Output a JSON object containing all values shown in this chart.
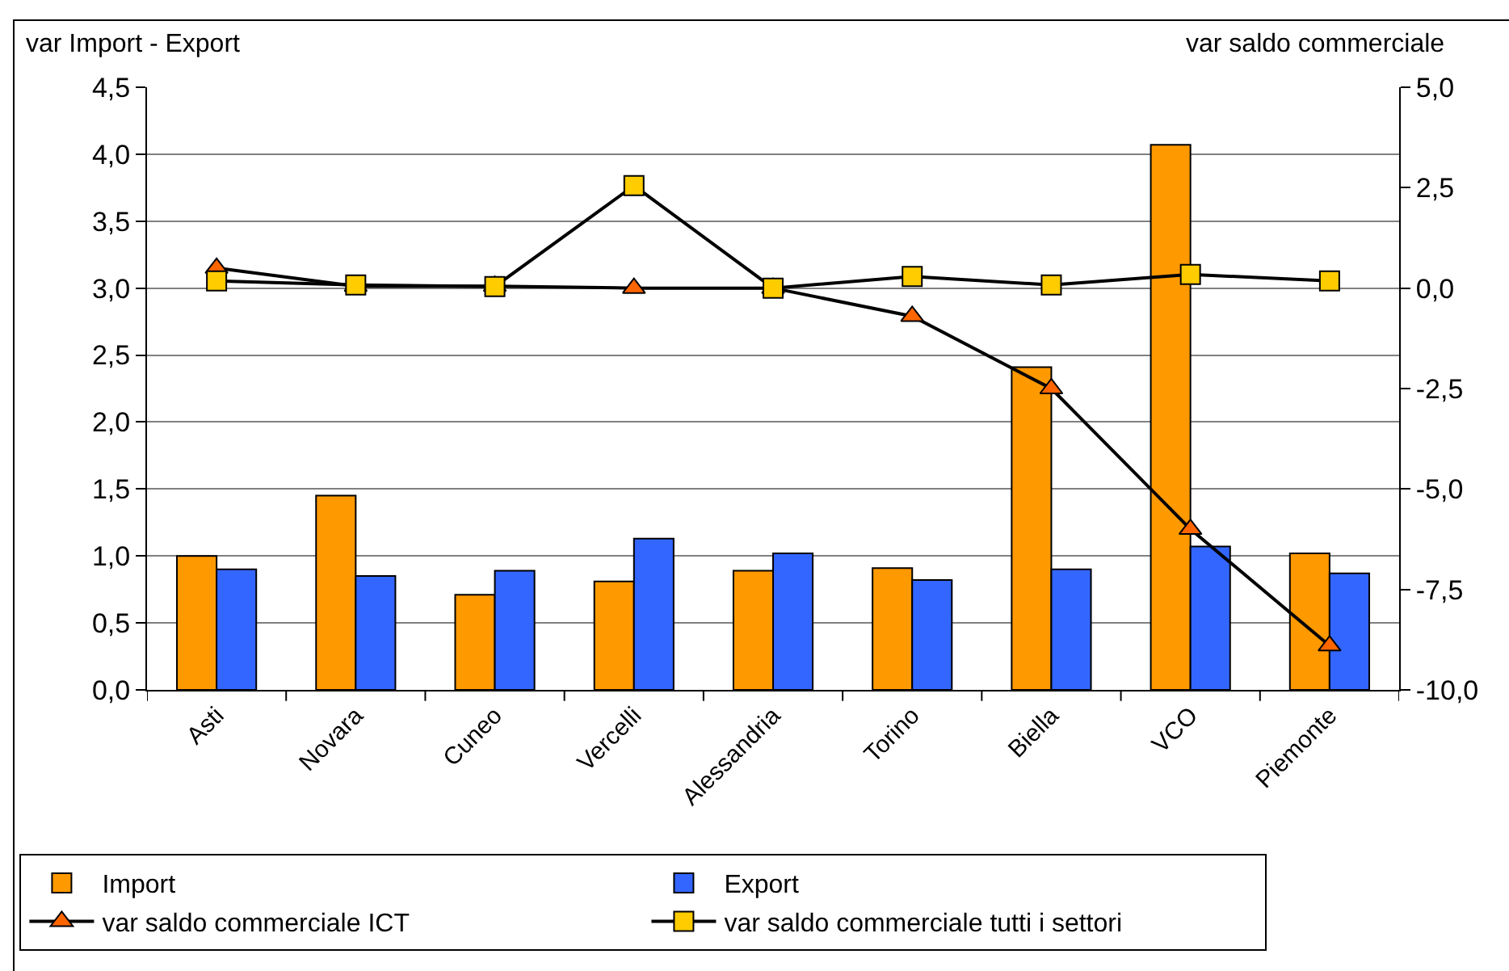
{
  "chart_data": {
    "type": "bar",
    "ylabel": "var Import - Export",
    "y2label": "var saldo commerciale",
    "categories": [
      "Asti",
      "Novara",
      "Cuneo",
      "Vercelli",
      "Alessandria",
      "Torino",
      "Biella",
      "VCO",
      "Piemonte"
    ],
    "series": [
      {
        "name": "Import",
        "color": "#ff9900",
        "values": [
          1.0,
          1.45,
          0.71,
          0.81,
          0.89,
          0.91,
          2.41,
          4.07,
          1.02
        ]
      },
      {
        "name": "Export",
        "color": "#3366ff",
        "values": [
          0.9,
          0.85,
          0.89,
          1.13,
          1.02,
          0.82,
          0.9,
          1.07,
          0.87
        ]
      },
      {
        "name": "var saldo commerciale ICT",
        "type": "line",
        "axis": "y2",
        "marker": "triangle",
        "color": "#ff6600",
        "values": [
          0.5,
          0.05,
          0.05,
          0.0,
          0.0,
          -0.7,
          -2.5,
          -6.0,
          -8.9
        ]
      },
      {
        "name": "var saldo commerciale tutti i settori",
        "type": "line",
        "axis": "y2",
        "marker": "square",
        "color": "#ffcc00",
        "values": [
          0.18,
          0.08,
          0.04,
          2.55,
          0.0,
          0.29,
          0.08,
          0.34,
          0.18
        ]
      }
    ],
    "ylim": [
      0,
      4.5
    ],
    "yticks": [
      {
        "value": 0,
        "label": "0,0"
      },
      {
        "value": 0.5,
        "label": "0,5"
      },
      {
        "value": 1,
        "label": "1,0"
      },
      {
        "value": 1.5,
        "label": "1,5"
      },
      {
        "value": 2,
        "label": "2,0"
      },
      {
        "value": 2.5,
        "label": "2,5"
      },
      {
        "value": 3,
        "label": "3,0"
      },
      {
        "value": 3.5,
        "label": "3,5"
      },
      {
        "value": 4,
        "label": "4,0"
      },
      {
        "value": 4.5,
        "label": "4,5"
      }
    ],
    "y2lim": [
      -10,
      5
    ],
    "y2ticks": [
      {
        "value": -10,
        "label": "-10,0"
      },
      {
        "value": -7.5,
        "label": "-7,5"
      },
      {
        "value": -5,
        "label": "-5,0"
      },
      {
        "value": -2.5,
        "label": "-2,5"
      },
      {
        "value": 0,
        "label": "0,0"
      },
      {
        "value": 2.5,
        "label": "2,5"
      },
      {
        "value": 5,
        "label": "5,0"
      }
    ],
    "grid": "y",
    "legend": "bottom"
  }
}
